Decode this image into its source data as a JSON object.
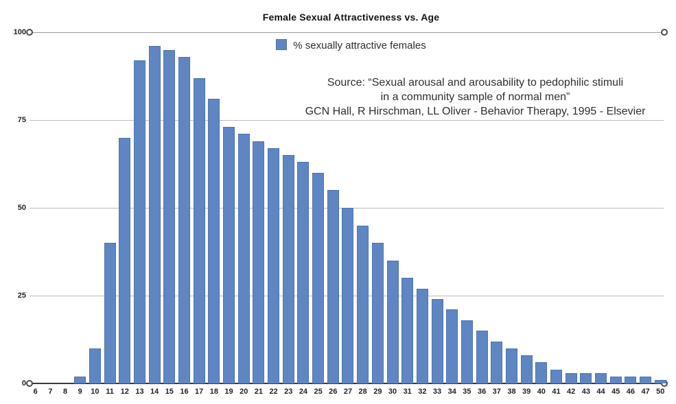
{
  "title": "Female Sexual Attractiveness vs. Age",
  "legend": {
    "label": "% sexually attractive females",
    "swatch_icon": "blue-square-swatch"
  },
  "source": {
    "line1": "Source: “Sexual arousal and arousability to pedophilic stimuli",
    "line2": "in a community sample of normal men”",
    "line3": "GCN Hall, R Hirschman, LL Oliver - Behavior Therapy, 1995 - Elsevier"
  },
  "colors": {
    "bar_fill": "#5f86c3",
    "bar_border": "#4d74ad",
    "gridline": "#bcbcbc",
    "top_gridline": "#9a9a9a",
    "axis_line": "#3a3a3a",
    "background": "#ffffff"
  },
  "chart_data": {
    "type": "bar",
    "title": "Female Sexual Attractiveness vs. Age",
    "legend_entries": [
      "% sexually attractive females"
    ],
    "legend_position": "top-center",
    "xlabel": "",
    "ylabel": "",
    "ylim": [
      0,
      100
    ],
    "yticks": [
      0,
      25,
      50,
      75,
      100
    ],
    "grid": true,
    "categories": [
      "6",
      "7",
      "8",
      "9",
      "10",
      "11",
      "12",
      "13",
      "14",
      "15",
      "16",
      "17",
      "18",
      "19",
      "20",
      "21",
      "22",
      "23",
      "24",
      "25",
      "26",
      "27",
      "28",
      "29",
      "30",
      "31",
      "32",
      "33",
      "34",
      "35",
      "36",
      "37",
      "38",
      "39",
      "40",
      "41",
      "42",
      "43",
      "44",
      "45",
      "46",
      "47",
      "50"
    ],
    "values": [
      0,
      0,
      0,
      2,
      10,
      40,
      70,
      92,
      96,
      95,
      93,
      87,
      81,
      73,
      71,
      69,
      67,
      65,
      63,
      60,
      55,
      50,
      45,
      40,
      35,
      30,
      27,
      24,
      21,
      18,
      15,
      12,
      10,
      8,
      6,
      4,
      3,
      3,
      3,
      2,
      2,
      2,
      1
    ]
  }
}
